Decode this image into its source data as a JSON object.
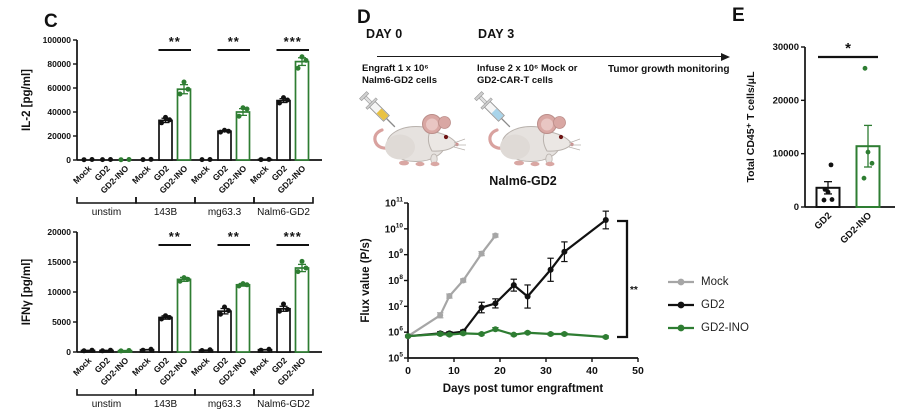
{
  "colors": {
    "black": "#111111",
    "green": "#2e7d32",
    "gray": "#a6a6a6"
  },
  "panels": {
    "c": {
      "label": "C"
    },
    "d": {
      "label": "D",
      "timeline": {
        "day0_title": "DAY 0",
        "day0_desc_line1": "Engraft 1 x 10⁶",
        "day0_desc_line2": "Nalm6-GD2 cells",
        "day3_title": "DAY 3",
        "day3_desc_line1": "Infuse 2 x 10⁶ Mock or",
        "day3_desc_line2": "GD2-CAR-T cells",
        "monitoring_label": "Tumor growth monitoring"
      },
      "illustration": {
        "mouse_icon": "mouse-with-syringe",
        "syringe1_liquid": "#e8c243",
        "syringe2_liquid": "#a9d4ea"
      }
    },
    "e": {
      "label": "E"
    }
  },
  "chart_data": [
    {
      "id": "il2",
      "type": "bar",
      "title": "",
      "ylabel": "IL-2 [pg/ml]",
      "ylim": [
        0,
        100000
      ],
      "yticks": [
        0,
        20000,
        40000,
        60000,
        80000,
        100000
      ],
      "groups": [
        "unstim",
        "143B",
        "mg63.3",
        "Nalm6-GD2"
      ],
      "conditions": [
        "Mock",
        "GD2",
        "GD2-INO"
      ],
      "series": [
        {
          "group": "unstim",
          "values": [
            300,
            350,
            300
          ],
          "errors": [
            80,
            80,
            80
          ],
          "points": [
            [
              250,
              400
            ],
            [
              300,
              450
            ],
            [
              250,
              400
            ]
          ]
        },
        {
          "group": "143B",
          "values": [
            400,
            33000,
            59000
          ],
          "errors": [
            100,
            1800,
            3800
          ],
          "points": [
            [
              300,
              500
            ],
            [
              31000,
              33500,
              35500
            ],
            [
              55000,
              59000,
              65000
            ]
          ]
        },
        {
          "group": "mg63.3",
          "values": [
            350,
            24000,
            40000
          ],
          "errors": [
            100,
            700,
            2800
          ],
          "points": [
            [
              300,
              450
            ],
            [
              23200,
              24000,
              24800
            ],
            [
              36500,
              42500,
              43500
            ]
          ]
        },
        {
          "group": "Nalm6-GD2",
          "values": [
            450,
            49500,
            82000
          ],
          "errors": [
            100,
            1600,
            3200
          ],
          "points": [
            [
              350,
              550
            ],
            [
              47500,
              50000,
              52000
            ],
            [
              76500,
              83000,
              86000
            ]
          ]
        }
      ],
      "significance": [
        {
          "group": "143B",
          "label": "**"
        },
        {
          "group": "mg63.3",
          "label": "**"
        },
        {
          "group": "Nalm6-GD2",
          "label": "***"
        }
      ]
    },
    {
      "id": "ifng",
      "type": "bar",
      "title": "",
      "ylabel": "IFNγ [pg/ml]",
      "ylim": [
        0,
        20000
      ],
      "yticks": [
        0,
        5000,
        10000,
        15000,
        20000
      ],
      "groups": [
        "unstim",
        "143B",
        "mg63.3",
        "Nalm6-GD2"
      ],
      "conditions": [
        "Mock",
        "GD2",
        "GD2-INO"
      ],
      "series": [
        {
          "group": "unstim",
          "values": [
            250,
            250,
            220
          ],
          "errors": [
            60,
            60,
            60
          ],
          "points": [
            [
              200,
              300
            ],
            [
              200,
              300
            ],
            [
              180,
              260
            ]
          ]
        },
        {
          "group": "143B",
          "values": [
            380,
            5750,
            12100
          ],
          "errors": [
            90,
            280,
            330
          ],
          "points": [
            [
              300,
              450
            ],
            [
              5500,
              5750,
              6050
            ],
            [
              11800,
              12100,
              12400
            ]
          ]
        },
        {
          "group": "mg63.3",
          "values": [
            300,
            6800,
            11200
          ],
          "errors": [
            80,
            450,
            220
          ],
          "points": [
            [
              250,
              380
            ],
            [
              6300,
              6900,
              7500
            ],
            [
              11000,
              11200,
              11400
            ]
          ]
        },
        {
          "group": "Nalm6-GD2",
          "values": [
            380,
            7200,
            14000
          ],
          "errors": [
            90,
            420,
            600
          ],
          "points": [
            [
              300,
              460
            ],
            [
              6800,
              7100,
              8000
            ],
            [
              13400,
              14000,
              15100
            ]
          ]
        }
      ],
      "significance": [
        {
          "group": "143B",
          "label": "**"
        },
        {
          "group": "mg63.3",
          "label": "**"
        },
        {
          "group": "Nalm6-GD2",
          "label": "***"
        }
      ]
    },
    {
      "id": "flux",
      "type": "line",
      "title": "Nalm6-GD2",
      "xlabel": "Days post tumor engraftment",
      "ylabel": "Flux value (P/s)",
      "xlim": [
        0,
        50
      ],
      "xticks": [
        0,
        10,
        20,
        30,
        40,
        50
      ],
      "yscale": "log",
      "ylim": [
        100000,
        100000000000
      ],
      "legend_position": "right",
      "significance": "**",
      "series": [
        {
          "name": "Mock",
          "color_key": "gray",
          "x": [
            0,
            7,
            9,
            12,
            16,
            19
          ],
          "y": [
            700000,
            4500000,
            25000000,
            100000000,
            1100000000,
            5500000000
          ],
          "err_factor": [
            1.08,
            1.25,
            1.2,
            1.15,
            1.2,
            1.15
          ]
        },
        {
          "name": "GD2",
          "color_key": "black",
          "x": [
            0,
            7,
            9,
            12,
            16,
            19,
            23,
            26,
            31,
            34,
            43
          ],
          "y": [
            700000,
            900000,
            900000,
            1050000,
            9000000,
            13000000,
            66000000,
            24000000,
            260000000,
            1300000000,
            22000000000
          ],
          "err_factor": [
            1.05,
            1.15,
            1.15,
            1.15,
            1.6,
            1.5,
            1.7,
            2.8,
            2.8,
            2.4,
            2.2
          ]
        },
        {
          "name": "GD2-INO",
          "color_key": "green",
          "x": [
            0,
            7,
            9,
            12,
            16,
            19,
            23,
            26,
            31,
            34,
            43
          ],
          "y": [
            700000,
            850000,
            800000,
            900000,
            850000,
            1300000,
            800000,
            950000,
            850000,
            850000,
            650000
          ],
          "err_factor": [
            1.05,
            1.12,
            1.1,
            1.12,
            1.1,
            1.15,
            1.1,
            1.1,
            1.1,
            1.1,
            1.1
          ]
        }
      ]
    },
    {
      "id": "cd45",
      "type": "bar",
      "title": "",
      "ylabel": "Total CD45⁺ T cells/μL",
      "ylim": [
        0,
        30000
      ],
      "yticks": [
        0,
        10000,
        20000,
        30000
      ],
      "categories": [
        "GD2",
        "GD2-INO"
      ],
      "values": [
        3600,
        11400
      ],
      "errors": [
        1150,
        3900
      ],
      "points": [
        [
          1300,
          1400,
          2800,
          3300,
          7900
        ],
        [
          5400,
          8200,
          10300,
          26000
        ]
      ],
      "significance": "*"
    }
  ]
}
